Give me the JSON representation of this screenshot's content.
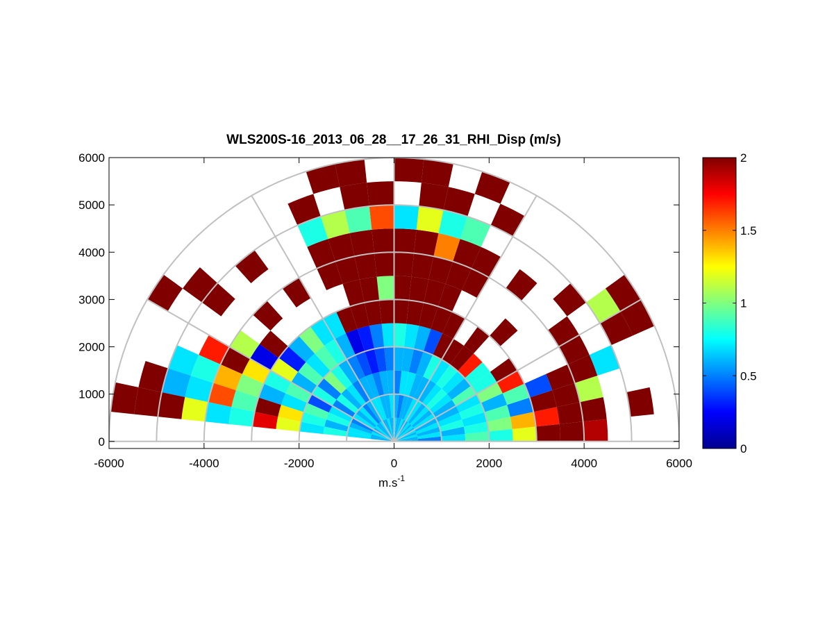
{
  "chart_data": {
    "type": "polar-heatmap",
    "title": "WLS200S-16_2013_06_28__17_26_31_RHI_Disp (m/s)",
    "xlabel": {
      "base": "m.s",
      "superscript": "-1"
    },
    "xlim": [
      -6000,
      6000
    ],
    "xticks": [
      -6000,
      -4000,
      -2000,
      0,
      2000,
      4000,
      6000
    ],
    "ylim": [
      -150,
      6000
    ],
    "yticks": [
      0,
      1000,
      2000,
      3000,
      4000,
      5000,
      6000
    ],
    "rings": [
      1000,
      2000,
      3000,
      4000,
      5000,
      6000
    ],
    "spokes": [
      0,
      30,
      60,
      90,
      120,
      150,
      180
    ],
    "clim": [
      0,
      2
    ],
    "cticks": [
      0,
      0.5,
      1,
      1.5,
      2
    ],
    "colormap": "jet",
    "angles": [
      0,
      6,
      12,
      18,
      24,
      30,
      36,
      42,
      48,
      54,
      60,
      66,
      72,
      78,
      84,
      90,
      96,
      102,
      108,
      114,
      120,
      126,
      132,
      138,
      144,
      150,
      156,
      162,
      168,
      174,
      180
    ],
    "ranges": [
      0,
      500,
      1000,
      1500,
      2000,
      2500,
      3000,
      3500,
      4000,
      4500,
      5000,
      5500,
      6000
    ],
    "values": [
      [
        0.6,
        0.5,
        0.7,
        0.9,
        0.8,
        1.2,
        2,
        2,
        1.9,
        null,
        null,
        null
      ],
      [
        0.6,
        0.7,
        0.6,
        0.8,
        1.0,
        1.4,
        1.7,
        2,
        2,
        null,
        2,
        null
      ],
      [
        0.7,
        0.6,
        0.8,
        0.7,
        0.9,
        0.5,
        2,
        2,
        1.1,
        null,
        null,
        null
      ],
      [
        0.6,
        0.7,
        0.7,
        0.8,
        0.6,
        0.9,
        0.4,
        2,
        2,
        0.7,
        null,
        null
      ],
      [
        0.7,
        0.6,
        0.6,
        0.7,
        1.0,
        1.7,
        null,
        null,
        2,
        null,
        2,
        2
      ],
      [
        0.6,
        0.7,
        0.6,
        0.9,
        0.8,
        2,
        null,
        null,
        2,
        null,
        1.1,
        2
      ],
      [
        0.7,
        0.6,
        0.7,
        0.6,
        0.8,
        null,
        null,
        null,
        null,
        2,
        null,
        null
      ],
      [
        0.6,
        0.7,
        0.8,
        0.7,
        1.7,
        null,
        2,
        null,
        null,
        null,
        null,
        null
      ],
      [
        0.7,
        0.6,
        0.7,
        0.8,
        2,
        2,
        null,
        null,
        2,
        null,
        null,
        null
      ],
      [
        0.6,
        0.7,
        0.6,
        0.7,
        2,
        null,
        null,
        null,
        null,
        null,
        null,
        null
      ],
      [
        0.6,
        0.7,
        0.6,
        0.8,
        2,
        2,
        null,
        2,
        2,
        null,
        2,
        null
      ],
      [
        0.7,
        0.6,
        0.6,
        0.6,
        0.4,
        2,
        2,
        2,
        2,
        0.9,
        null,
        2
      ],
      [
        0.6,
        0.6,
        0.7,
        0.5,
        0.6,
        2,
        2,
        2,
        1.5,
        0.8,
        2,
        null
      ],
      [
        0.6,
        0.5,
        0.7,
        0.6,
        0.7,
        2,
        2,
        2,
        2,
        1.2,
        2,
        2
      ],
      [
        0.7,
        0.6,
        0.5,
        0.6,
        0.8,
        2,
        2,
        2,
        2,
        0.7,
        null,
        2
      ],
      [
        0.6,
        0.7,
        0.6,
        0.5,
        0.7,
        2,
        1,
        2,
        2,
        1.6,
        2,
        null
      ],
      [
        0.6,
        0.6,
        0.6,
        0.4,
        0.5,
        2,
        2,
        2,
        2,
        0.9,
        2,
        2
      ],
      [
        0.7,
        0.6,
        0.5,
        0.3,
        0.3,
        2,
        2,
        2,
        2,
        1.1,
        null,
        2
      ],
      [
        0.6,
        0.7,
        0.6,
        0.4,
        0.2,
        2,
        null,
        2,
        2,
        0.8,
        2,
        null
      ],
      [
        0.6,
        0.7,
        0.6,
        0.5,
        0.6,
        0.7,
        null,
        null,
        null,
        null,
        null,
        null
      ],
      [
        0.7,
        0.6,
        0.5,
        0.6,
        0.8,
        0.7,
        null,
        2,
        null,
        null,
        null,
        null
      ],
      [
        0.6,
        0.5,
        0.7,
        0.8,
        0.9,
        1.0,
        null,
        null,
        null,
        2,
        null,
        null
      ],
      [
        0.6,
        0.7,
        0.6,
        1.0,
        0.7,
        0.6,
        null,
        2,
        null,
        null,
        null,
        null
      ],
      [
        0.7,
        0.6,
        0.8,
        0.5,
        0.9,
        0.3,
        2,
        null,
        null,
        2,
        2,
        null
      ],
      [
        0.6,
        0.7,
        0.5,
        0.8,
        0.6,
        1.2,
        0.2,
        1.1,
        null,
        null,
        null,
        2
      ],
      [
        0.6,
        0.5,
        0.7,
        0.4,
        0.9,
        0.8,
        1.3,
        2,
        1.7,
        null,
        null,
        null
      ],
      [
        0.7,
        0.6,
        0.8,
        0.9,
        0.7,
        0.6,
        1.0,
        1.4,
        0.8,
        0.7,
        null,
        null
      ],
      [
        0.6,
        0.7,
        0.6,
        0.8,
        1.3,
        2,
        0.9,
        1.6,
        0.7,
        0.6,
        2,
        null
      ],
      [
        0.6,
        0.7,
        0.8,
        0.7,
        1.2,
        1.8,
        0.8,
        0.7,
        1.2,
        2,
        2,
        2
      ],
      [
        null,
        null,
        null,
        null,
        null,
        null,
        null,
        null,
        null,
        null,
        null,
        null
      ]
    ]
  }
}
